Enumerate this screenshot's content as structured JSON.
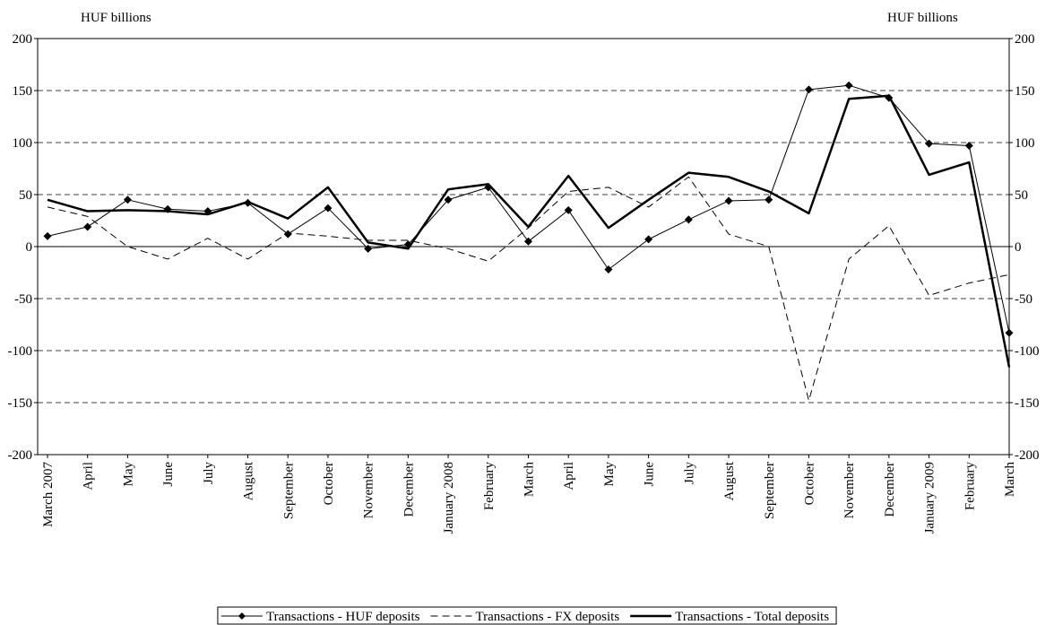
{
  "chart_data": {
    "type": "line",
    "y_label": "HUF billions",
    "y2_label": "HUF billions",
    "categories": [
      "March 2007",
      "April",
      "May",
      "June",
      "July",
      "August",
      "September",
      "October",
      "November",
      "December",
      "January 2008",
      "February",
      "March",
      "April",
      "May",
      "June",
      "July",
      "August",
      "September",
      "October",
      "November",
      "December",
      "January 2009",
      "February",
      "March"
    ],
    "series": [
      {
        "name": "Transactions - HUF deposits",
        "color": "#000000",
        "style": "solid",
        "linewidth": 1,
        "marker": "diamond",
        "values": [
          10,
          19,
          45,
          36,
          34,
          42,
          12,
          37,
          -2,
          2,
          45,
          57,
          5,
          35,
          -22,
          7,
          26,
          44,
          45,
          151,
          155,
          143,
          99,
          97,
          -83
        ]
      },
      {
        "name": "Transactions - FX deposits",
        "color": "#000000",
        "style": "dashed",
        "linewidth": 1,
        "marker": "none",
        "values": [
          38,
          29,
          0,
          -12,
          8,
          -12,
          13,
          10,
          6,
          6,
          -2,
          -14,
          18,
          53,
          57,
          38,
          67,
          12,
          0,
          -148,
          -12,
          20,
          -47,
          -35,
          -27
        ]
      },
      {
        "name": "Transactions - Total deposits",
        "color": "#000000",
        "style": "solid",
        "linewidth": 2.5,
        "marker": "none",
        "values": [
          45,
          34,
          35,
          34,
          31,
          43,
          27,
          57,
          4,
          -2,
          55,
          60,
          19,
          68,
          18,
          45,
          71,
          67,
          53,
          32,
          142,
          145,
          69,
          81,
          -116
        ]
      }
    ],
    "ylim": [
      -200,
      200
    ],
    "yticks": [
      -200,
      -150,
      -100,
      -50,
      0,
      50,
      100,
      150,
      200
    ],
    "y2lim": [
      -200,
      200
    ],
    "y2ticks": [
      -200,
      -150,
      -100,
      -50,
      0,
      50,
      100,
      150,
      200
    ],
    "grid": true,
    "grid_style": "dashed",
    "legend": "bottom"
  }
}
